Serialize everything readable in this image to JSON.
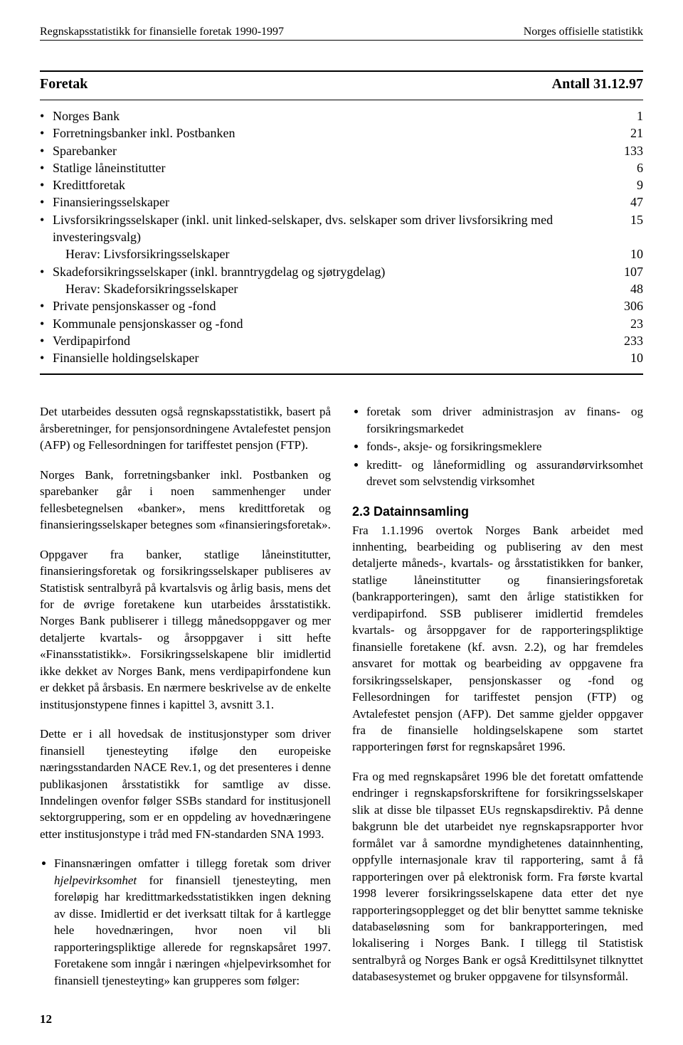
{
  "header": {
    "left": "Regnskapsstatistikk for finansielle foretak 1990-1997",
    "right": "Norges offisielle statistikk"
  },
  "table": {
    "type": "table",
    "head_left": "Foretak",
    "head_right": "Antall 31.12.97",
    "rows": [
      {
        "label": "Norges Bank",
        "value": "1",
        "bullet": true
      },
      {
        "label": "Forretningsbanker inkl. Postbanken",
        "value": "21",
        "bullet": true
      },
      {
        "label": "Sparebanker",
        "value": "133",
        "bullet": true
      },
      {
        "label": "Statlige låneinstitutter",
        "value": "6",
        "bullet": true
      },
      {
        "label": "Kredittforetak",
        "value": "9",
        "bullet": true
      },
      {
        "label": "Finansieringsselskaper",
        "value": "47",
        "bullet": true
      },
      {
        "label": "Livsforsikringsselskaper (inkl. unit linked-selskaper, dvs. selskaper som driver livsforsikring med investeringsvalg)",
        "value": "15",
        "bullet": true
      },
      {
        "label": "Herav: Livsforsikringsselskaper",
        "value": "10",
        "bullet": false
      },
      {
        "label": "Skadeforsikringsselskaper (inkl. branntrygdelag og sjøtrygdelag)",
        "value": "107",
        "bullet": true
      },
      {
        "label": "Herav: Skadeforsikringsselskaper",
        "value": "48",
        "bullet": false
      },
      {
        "label": "Private pensjonskasser og -fond",
        "value": "306",
        "bullet": true
      },
      {
        "label": "Kommunale pensjonskasser og -fond",
        "value": "23",
        "bullet": true
      },
      {
        "label": "Verdipapirfond",
        "value": "233",
        "bullet": true
      },
      {
        "label": "Finansielle holdingselskaper",
        "value": "10",
        "bullet": true
      }
    ],
    "fontsize_head": 20,
    "fontsize_row": 18,
    "rule_color": "#000000"
  },
  "left_col": {
    "p1": "Det utarbeides dessuten også regnskapsstatistikk, basert på årsberetninger, for pensjonsordningene Avtalefestet pensjon (AFP) og Fellesordningen for tariffestet pensjon (FTP).",
    "p2": "Norges Bank, forretningsbanker inkl. Postbanken og sparebanker går i noen sammenhenger under fellesbetegnelsen «banker», mens kredittforetak og finansieringsselskaper betegnes som «finansieringsforetak».",
    "p3": "Oppgaver fra banker, statlige låneinstitutter, finansieringsforetak og forsikringsselskaper publiseres av Statistisk sentralbyrå på kvartalsvis og årlig basis, mens det for de øvrige foretakene kun utarbeides årsstatistikk. Norges Bank publiserer i tillegg månedsoppgaver og mer detaljerte kvartals- og årsoppgaver i sitt hefte «Finansstatistikk». Forsikringsselskapene blir imidlertid ikke dekket av Norges Bank, mens verdipapirfondene kun er dekket på årsbasis. En nærmere beskrivelse av de enkelte institusjonstypene finnes i kapittel 3, avsnitt 3.1.",
    "p4": "Dette er i all hovedsak de institusjonstyper som driver finansiell tjenesteyting ifølge den europeiske næringsstandarden NACE Rev.1, og det presenteres i denne publikasjonen årsstatistikk for samtlige av disse. Inndelingen ovenfor følger SSBs standard for institusjonell sektorgruppering, som er en oppdeling av hovednæringene etter institusjonstype i tråd med FN-standarden SNA 1993.",
    "li1_pre": "Finansnæringen omfatter i tillegg foretak som driver ",
    "li1_em": "hjelpevirksomhet",
    "li1_post": " for finansiell tjenesteyting, men foreløpig har kredittmarkedsstatistikken ingen dekning av disse. Imidlertid er det iverksatt tiltak for å kartlegge hele hovednæringen, hvor noen vil bli rapporteringspliktige allerede for regnskapsåret 1997. Foretakene som inngår i næringen «hjelpevirksomhet for finansiell tjenesteyting» kan grupperes som følger:"
  },
  "right_col": {
    "li1": "foretak som driver administrasjon av finans- og forsikringsmarkedet",
    "li2": "fonds-, aksje- og forsikringsmeklere",
    "li3": "kreditt- og låneformidling og assurandørvirksomhet drevet som selvstendig virksomhet",
    "h2": "2.3 Datainnsamling",
    "p1": "Fra 1.1.1996 overtok Norges Bank arbeidet med innhenting, bearbeiding og publisering av den mest detaljerte måneds-, kvartals- og årsstatistikken for banker, statlige låneinstitutter og finansieringsforetak (bankrapporteringen), samt den årlige statistikken for verdipapirfond. SSB publiserer imidlertid fremdeles kvartals- og årsoppgaver for de rapporteringspliktige finansielle foretakene (kf. avsn. 2.2), og har fremdeles ansvaret for mottak og bearbeiding av oppgavene fra forsikringsselskaper, pensjonskasser og -fond og Fellesordningen for tariffestet pensjon (FTP) og Avtalefestet pensjon (AFP). Det samme gjelder oppgaver fra de finansielle holdingselskapene som startet rapporteringen først for regnskapsåret 1996.",
    "p2": "Fra og med regnskapsåret 1996 ble det foretatt omfattende endringer i regnskapsforskriftene for forsikringsselskaper slik at disse ble tilpasset EUs regnskapsdirektiv. På denne bakgrunn ble det utarbeidet nye regnskapsrapporter hvor formålet var å samordne myndighetenes datainnhenting, oppfylle internasjonale krav til rapportering, samt å få rapporteringen over på elektronisk form. Fra første kvartal 1998 leverer forsikringsselskapene data etter det nye rapporteringsopplegget og det blir benyttet samme tekniske databaseløsning som for bankrapporteringen, med lokalisering i Norges Bank. I tillegg til Statistisk sentralbyrå og Norges Bank er også Kredittilsynet tilknyttet databasesystemet og bruker oppgavene for tilsynsformål."
  },
  "page_number": "12",
  "colors": {
    "text": "#000000",
    "background": "#ffffff",
    "rule": "#000000"
  },
  "typography": {
    "body_family": "Times New Roman",
    "body_size_pt": 12,
    "heading_family": "Arial"
  }
}
